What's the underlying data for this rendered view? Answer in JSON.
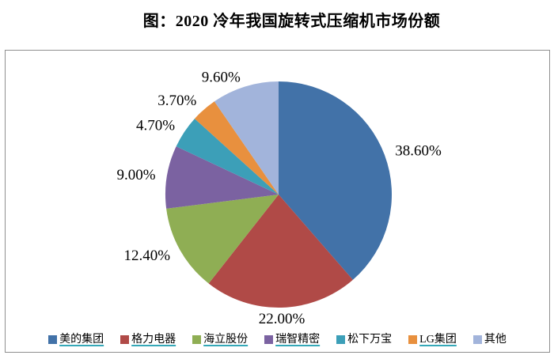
{
  "title": "图：2020 冷年我国旋转式压缩机市场份额",
  "chart_data": {
    "type": "pie",
    "title": "图：2020 冷年我国旋转式压缩机市场份额",
    "start_angle_deg": 0,
    "direction": "clockwise",
    "legend_position": "bottom",
    "label_color": "#000000",
    "underline_color": "#35a8b8",
    "series": [
      {
        "label": "美的集团",
        "value": 38.6,
        "display": "38.60%",
        "color": "#4272a8",
        "legend_underlined": true
      },
      {
        "label": "格力电器",
        "value": 22.0,
        "display": "22.00%",
        "color": "#b04a47",
        "legend_underlined": true
      },
      {
        "label": "海立股份",
        "value": 12.4,
        "display": "12.40%",
        "color": "#8fae54",
        "legend_underlined": true
      },
      {
        "label": "瑞智精密",
        "value": 9.0,
        "display": "9.00%",
        "color": "#7b62a1",
        "legend_underlined": true
      },
      {
        "label": "松下万宝",
        "value": 4.7,
        "display": "4.70%",
        "color": "#3c9fb8",
        "legend_underlined": false
      },
      {
        "label": "LG集团",
        "value": 3.7,
        "display": "3.70%",
        "color": "#e8903e",
        "legend_underlined": true
      },
      {
        "label": "其他",
        "value": 9.6,
        "display": "9.60%",
        "color": "#a2b4db",
        "legend_underlined": false
      }
    ]
  }
}
